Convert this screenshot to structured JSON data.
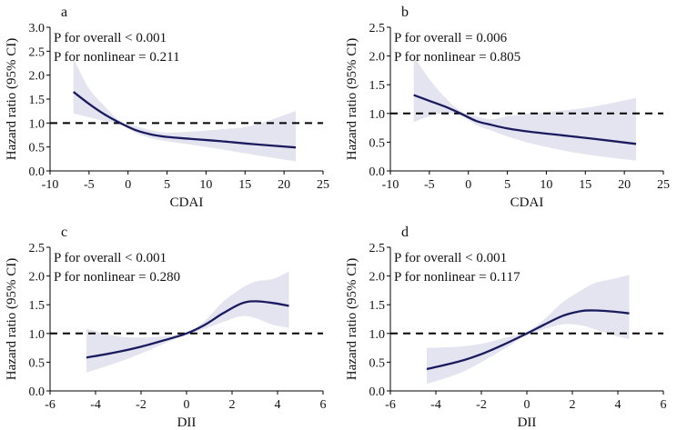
{
  "figure": {
    "style": {
      "line_color": "#1a1a5e",
      "band_color": "#e3e4ef",
      "ref_color": "#000000"
    }
  },
  "chart_data": [
    {
      "type": "line",
      "panel_label": "a",
      "xlabel": "CDAI",
      "ylabel": "Hazard ratio (95% CI)",
      "xlim": [
        -10,
        25
      ],
      "ylim": [
        0,
        3.0
      ],
      "xticks": [
        -10,
        -5,
        0,
        5,
        10,
        15,
        20,
        25
      ],
      "yticks": [
        "0.0",
        "0.5",
        "1.0",
        "1.5",
        "2.0",
        "2.5",
        "3.0"
      ],
      "reference_line": 1.0,
      "annotations": [
        "P for overall < 0.001",
        "P for nonlinear = 0.211"
      ],
      "series": [
        {
          "name": "Hazard ratio",
          "x": [
            -7,
            -5,
            -3,
            -1,
            1,
            3,
            5,
            8,
            12,
            16,
            21.5
          ],
          "y": [
            1.65,
            1.4,
            1.18,
            1.0,
            0.85,
            0.76,
            0.71,
            0.67,
            0.62,
            0.56,
            0.49
          ],
          "lower": [
            1.2,
            1.12,
            1.04,
            0.97,
            0.79,
            0.68,
            0.62,
            0.55,
            0.45,
            0.34,
            0.2
          ],
          "upper": [
            2.35,
            1.72,
            1.35,
            1.04,
            0.93,
            0.85,
            0.8,
            0.82,
            0.87,
            0.95,
            1.25
          ]
        }
      ]
    },
    {
      "type": "line",
      "panel_label": "b",
      "xlabel": "CDAI",
      "ylabel": "Hazard ratio (95% CI)",
      "xlim": [
        -10,
        25
      ],
      "ylim": [
        0,
        2.5
      ],
      "xticks": [
        -10,
        -5,
        0,
        5,
        10,
        15,
        20,
        25
      ],
      "yticks": [
        "0.0",
        "0.5",
        "1.0",
        "1.5",
        "2.0",
        "2.5"
      ],
      "reference_line": 1.0,
      "annotations": [
        "P for overall = 0.006",
        "P for nonlinear = 0.805"
      ],
      "series": [
        {
          "name": "Hazard ratio",
          "x": [
            -7,
            -5,
            -3,
            -1,
            1,
            3,
            5,
            8,
            12,
            16,
            21.5
          ],
          "y": [
            1.32,
            1.22,
            1.12,
            1.0,
            0.87,
            0.8,
            0.74,
            0.68,
            0.62,
            0.56,
            0.47
          ],
          "lower": [
            0.85,
            0.95,
            1.01,
            0.97,
            0.8,
            0.7,
            0.6,
            0.48,
            0.36,
            0.27,
            0.18
          ],
          "upper": [
            2.0,
            1.6,
            1.28,
            1.04,
            0.95,
            0.9,
            0.95,
            1.0,
            1.05,
            1.12,
            1.27
          ]
        }
      ]
    },
    {
      "type": "line",
      "panel_label": "c",
      "xlabel": "DII",
      "ylabel": "Hazard ratio (95% CI)",
      "xlim": [
        -6,
        6
      ],
      "ylim": [
        0,
        2.5
      ],
      "xticks": [
        -6,
        -4,
        -2,
        0,
        2,
        4,
        6
      ],
      "yticks": [
        "0.0",
        "0.5",
        "1.0",
        "1.5",
        "2.0",
        "2.5"
      ],
      "reference_line": 1.0,
      "annotations": [
        "P for overall < 0.001",
        "P for nonlinear = 0.280"
      ],
      "series": [
        {
          "name": "Hazard ratio",
          "x": [
            -4.4,
            -3,
            -2,
            -1,
            0,
            0.8,
            1.6,
            2.4,
            3,
            3.8,
            4.5
          ],
          "y": [
            0.58,
            0.68,
            0.77,
            0.88,
            1.0,
            1.15,
            1.35,
            1.52,
            1.56,
            1.53,
            1.48
          ],
          "lower": [
            0.32,
            0.5,
            0.65,
            0.82,
            0.98,
            1.08,
            1.2,
            1.3,
            1.27,
            1.15,
            1.1
          ],
          "upper": [
            1.08,
            0.95,
            0.93,
            0.95,
            1.02,
            1.22,
            1.55,
            1.78,
            1.9,
            1.95,
            2.08
          ]
        }
      ]
    },
    {
      "type": "line",
      "panel_label": "d",
      "xlabel": "DII",
      "ylabel": "Hazard ratio (95% CI)",
      "xlim": [
        -6,
        6
      ],
      "ylim": [
        0,
        2.5
      ],
      "xticks": [
        -6,
        -4,
        -2,
        0,
        2,
        4,
        6
      ],
      "yticks": [
        "0.0",
        "0.5",
        "1.0",
        "1.5",
        "2.0",
        "2.5"
      ],
      "reference_line": 1.0,
      "annotations": [
        "P for overall < 0.001",
        "P for nonlinear = 0.117"
      ],
      "series": [
        {
          "name": "Hazard ratio",
          "x": [
            -4.4,
            -3,
            -2,
            -1,
            0,
            0.8,
            1.6,
            2.4,
            3,
            3.8,
            4.5
          ],
          "y": [
            0.38,
            0.51,
            0.64,
            0.81,
            1.0,
            1.16,
            1.31,
            1.39,
            1.4,
            1.38,
            1.35
          ],
          "lower": [
            0.12,
            0.3,
            0.5,
            0.73,
            0.97,
            1.08,
            1.16,
            1.14,
            1.07,
            0.97,
            0.9
          ],
          "upper": [
            0.75,
            0.77,
            0.82,
            0.92,
            1.03,
            1.26,
            1.55,
            1.75,
            1.88,
            1.95,
            2.02
          ]
        }
      ]
    }
  ]
}
